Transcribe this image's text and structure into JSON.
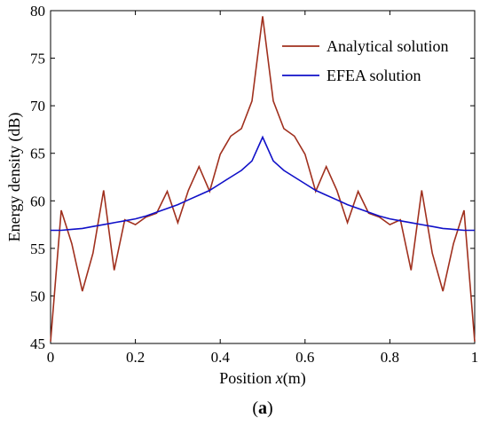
{
  "chart_data": {
    "type": "line",
    "xlabel_prefix": "Position ",
    "xlabel_var": "x",
    "xlabel_suffix": "(m)",
    "ylabel": "Energy density (dB)",
    "panel_label_open": "(",
    "panel_label_letter": "a",
    "panel_label_close": ")",
    "xlim": [
      0,
      1
    ],
    "ylim": [
      45,
      80
    ],
    "xticks": [
      "0",
      "0.2",
      "0.4",
      "0.6",
      "0.8",
      "1"
    ],
    "yticks": [
      "45",
      "50",
      "55",
      "60",
      "65",
      "70",
      "75",
      "80"
    ],
    "grid": false,
    "legend_position": "top-right",
    "series": [
      {
        "name": "Analytical solution",
        "color": "#a0301e",
        "x": [
          0,
          0.025,
          0.05,
          0.075,
          0.1,
          0.125,
          0.15,
          0.175,
          0.2,
          0.225,
          0.25,
          0.275,
          0.3,
          0.325,
          0.35,
          0.375,
          0.4,
          0.425,
          0.45,
          0.475,
          0.5,
          0.525,
          0.55,
          0.575,
          0.6,
          0.625,
          0.65,
          0.675,
          0.7,
          0.725,
          0.75,
          0.775,
          0.8,
          0.825,
          0.85,
          0.875,
          0.9,
          0.925,
          0.95,
          0.975,
          1
        ],
        "y": [
          45.2,
          59.0,
          55.5,
          50.5,
          54.5,
          61.1,
          52.7,
          58.0,
          57.5,
          58.3,
          58.7,
          61.0,
          57.7,
          61.1,
          63.6,
          61.0,
          64.9,
          66.8,
          67.6,
          70.5,
          79.4,
          70.5,
          67.6,
          66.8,
          64.9,
          61.0,
          63.6,
          61.1,
          57.7,
          61.0,
          58.7,
          58.3,
          57.5,
          58.0,
          52.7,
          61.1,
          54.5,
          50.5,
          55.5,
          59.0,
          45.2
        ]
      },
      {
        "name": "EFEA solution",
        "color": "#1010c8",
        "x": [
          0,
          0.025,
          0.05,
          0.075,
          0.1,
          0.125,
          0.15,
          0.175,
          0.2,
          0.225,
          0.25,
          0.275,
          0.3,
          0.325,
          0.35,
          0.375,
          0.4,
          0.425,
          0.45,
          0.475,
          0.5,
          0.525,
          0.55,
          0.575,
          0.6,
          0.625,
          0.65,
          0.675,
          0.7,
          0.725,
          0.75,
          0.775,
          0.8,
          0.825,
          0.85,
          0.875,
          0.9,
          0.925,
          0.95,
          0.975,
          1
        ],
        "y": [
          56.9,
          56.9,
          57.0,
          57.1,
          57.3,
          57.5,
          57.7,
          57.9,
          58.1,
          58.4,
          58.8,
          59.2,
          59.6,
          60.1,
          60.6,
          61.1,
          61.8,
          62.5,
          63.2,
          64.2,
          66.7,
          64.2,
          63.2,
          62.5,
          61.8,
          61.1,
          60.6,
          60.1,
          59.6,
          59.2,
          58.8,
          58.4,
          58.1,
          57.9,
          57.7,
          57.5,
          57.3,
          57.1,
          57.0,
          56.9,
          56.9
        ]
      }
    ]
  }
}
